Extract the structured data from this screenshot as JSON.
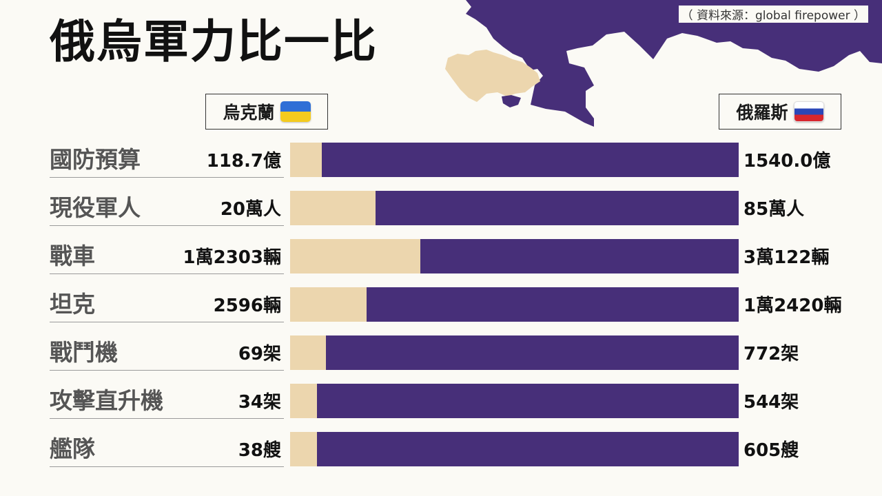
{
  "title": "俄烏軍力比一比",
  "source": "（ 資料來源：global firepower ）",
  "legend": {
    "ukraine": "烏克蘭",
    "russia": "俄羅斯"
  },
  "colors": {
    "ukraine": "#ecd6ae",
    "russia": "#472f79",
    "background": "#fbfaf5"
  },
  "icons": [
    "ukraine-flag-icon",
    "russia-flag-icon"
  ],
  "chart_data": {
    "type": "bar",
    "stacked": "horizontal-share",
    "categories": [
      "國防預算",
      "現役軍人",
      "戰車",
      "坦克",
      "戰鬥機",
      "攻擊直升機",
      "艦隊"
    ],
    "series": [
      {
        "name": "烏克蘭",
        "values": [
          118.7,
          200000,
          12303,
          2596,
          69,
          34,
          38
        ],
        "labels": [
          "118.7億",
          "20萬人",
          "1萬2303輛",
          "2596輛",
          "69架",
          "34架",
          "38艘"
        ]
      },
      {
        "name": "俄羅斯",
        "values": [
          1540.0,
          850000,
          30122,
          12420,
          772,
          544,
          605
        ],
        "labels": [
          "1540.0億",
          "85萬人",
          "3萬122輛",
          "1萬2420輛",
          "772架",
          "544架",
          "605艘"
        ]
      }
    ],
    "ukraine_share": [
      0.07,
      0.19,
      0.29,
      0.17,
      0.08,
      0.06,
      0.06
    ],
    "legend_position": "top"
  }
}
